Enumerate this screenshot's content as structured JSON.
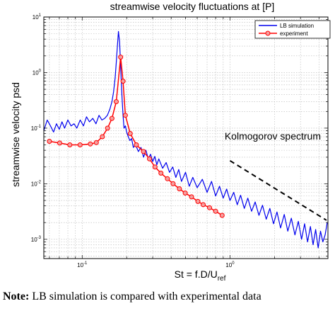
{
  "chart_data": {
    "type": "line",
    "title": "streamwise velocity fluctuations at [P]",
    "xlabel_main": "St = f.D/U",
    "xlabel_sub": "ref",
    "ylabel": "streamwise velocity psd",
    "xscale": "log",
    "yscale": "log",
    "xlim": [
      0.055,
      4.6
    ],
    "ylim": [
      0.00045,
      10
    ],
    "grid": true,
    "legend_position": "top-right",
    "x_tick_labels": [
      {
        "base": "10",
        "exp": "-1",
        "value": 0.1
      },
      {
        "base": "10",
        "exp": "0",
        "value": 1
      }
    ],
    "y_tick_labels": [
      {
        "base": "10",
        "exp": "1",
        "value": 10
      },
      {
        "base": "10",
        "exp": "0",
        "value": 1
      },
      {
        "base": "10",
        "exp": "-1",
        "value": 0.1
      },
      {
        "base": "10",
        "exp": "-2",
        "value": 0.01
      },
      {
        "base": "10",
        "exp": "-3",
        "value": 0.001
      }
    ],
    "annotation": {
      "text": "Kolmogorov spectrum",
      "x": 0.92,
      "y": 0.062
    },
    "kolmogorov_line": {
      "x": [
        1.0,
        4.5
      ],
      "y": [
        0.026,
        0.0022
      ]
    },
    "series": [
      {
        "name": "LB simulation",
        "color": "#0000ee",
        "x": [
          0.055,
          0.058,
          0.061,
          0.064,
          0.067,
          0.07,
          0.073,
          0.076,
          0.08,
          0.084,
          0.088,
          0.092,
          0.097,
          0.102,
          0.107,
          0.112,
          0.118,
          0.124,
          0.13,
          0.136,
          0.142,
          0.148,
          0.154,
          0.159,
          0.163,
          0.167,
          0.17,
          0.173,
          0.176,
          0.179,
          0.181,
          0.183,
          0.186,
          0.189,
          0.192,
          0.196,
          0.2,
          0.205,
          0.21,
          0.216,
          0.222,
          0.23,
          0.24,
          0.25,
          0.26,
          0.27,
          0.28,
          0.29,
          0.3,
          0.31,
          0.32,
          0.33,
          0.35,
          0.37,
          0.39,
          0.41,
          0.43,
          0.45,
          0.47,
          0.5,
          0.53,
          0.56,
          0.6,
          0.65,
          0.7,
          0.75,
          0.8,
          0.85,
          0.9,
          0.95,
          1.0,
          1.06,
          1.12,
          1.18,
          1.25,
          1.32,
          1.4,
          1.48,
          1.57,
          1.66,
          1.76,
          1.86,
          1.97,
          2.08,
          2.2,
          2.33,
          2.46,
          2.6,
          2.75,
          2.9,
          3.05,
          3.2,
          3.35,
          3.5,
          3.65,
          3.8,
          3.95,
          4.1,
          4.25,
          4.4,
          4.55
        ],
        "y": [
          0.09,
          0.14,
          0.11,
          0.085,
          0.12,
          0.095,
          0.13,
          0.1,
          0.14,
          0.11,
          0.12,
          0.1,
          0.14,
          0.11,
          0.16,
          0.13,
          0.15,
          0.12,
          0.17,
          0.14,
          0.15,
          0.17,
          0.22,
          0.3,
          0.45,
          0.8,
          1.5,
          3.0,
          5.5,
          3.6,
          1.8,
          0.9,
          0.35,
          0.17,
          0.1,
          0.11,
          0.085,
          0.07,
          0.06,
          0.065,
          0.045,
          0.05,
          0.038,
          0.045,
          0.03,
          0.04,
          0.028,
          0.034,
          0.025,
          0.031,
          0.022,
          0.028,
          0.019,
          0.024,
          0.016,
          0.02,
          0.013,
          0.018,
          0.011,
          0.016,
          0.009,
          0.013,
          0.0085,
          0.012,
          0.007,
          0.011,
          0.006,
          0.009,
          0.0055,
          0.008,
          0.005,
          0.007,
          0.0042,
          0.0062,
          0.0036,
          0.0055,
          0.0032,
          0.0047,
          0.0027,
          0.0041,
          0.0023,
          0.0036,
          0.0019,
          0.0031,
          0.0016,
          0.0028,
          0.0014,
          0.0024,
          0.0012,
          0.0021,
          0.001,
          0.0019,
          0.0009,
          0.0017,
          0.0008,
          0.0015,
          0.0007,
          0.0014,
          0.0009,
          0.0012,
          0.002
        ]
      },
      {
        "name": "experiment",
        "color": "#ff0000",
        "x": [
          0.06,
          0.0704,
          0.0825,
          0.0968,
          0.1135,
          0.1247,
          0.1369,
          0.1485,
          0.159,
          0.17,
          0.182,
          0.189,
          0.196,
          0.2115,
          0.2327,
          0.2599,
          0.2852,
          0.311,
          0.341,
          0.3773,
          0.4123,
          0.4547,
          0.4978,
          0.5494,
          0.6063,
          0.6589,
          0.7271,
          0.7994,
          0.885
        ],
        "y": [
          0.058,
          0.054,
          0.05,
          0.05,
          0.052,
          0.055,
          0.07,
          0.1,
          0.15,
          0.3,
          1.9,
          0.7,
          0.17,
          0.08,
          0.05,
          0.038,
          0.028,
          0.02,
          0.0155,
          0.0123,
          0.01,
          0.0081,
          0.0068,
          0.0058,
          0.0048,
          0.0042,
          0.0037,
          0.0032,
          0.0027
        ]
      }
    ]
  },
  "note": {
    "label": "Note:",
    "text": " LB simulation is compared with experimental data"
  }
}
